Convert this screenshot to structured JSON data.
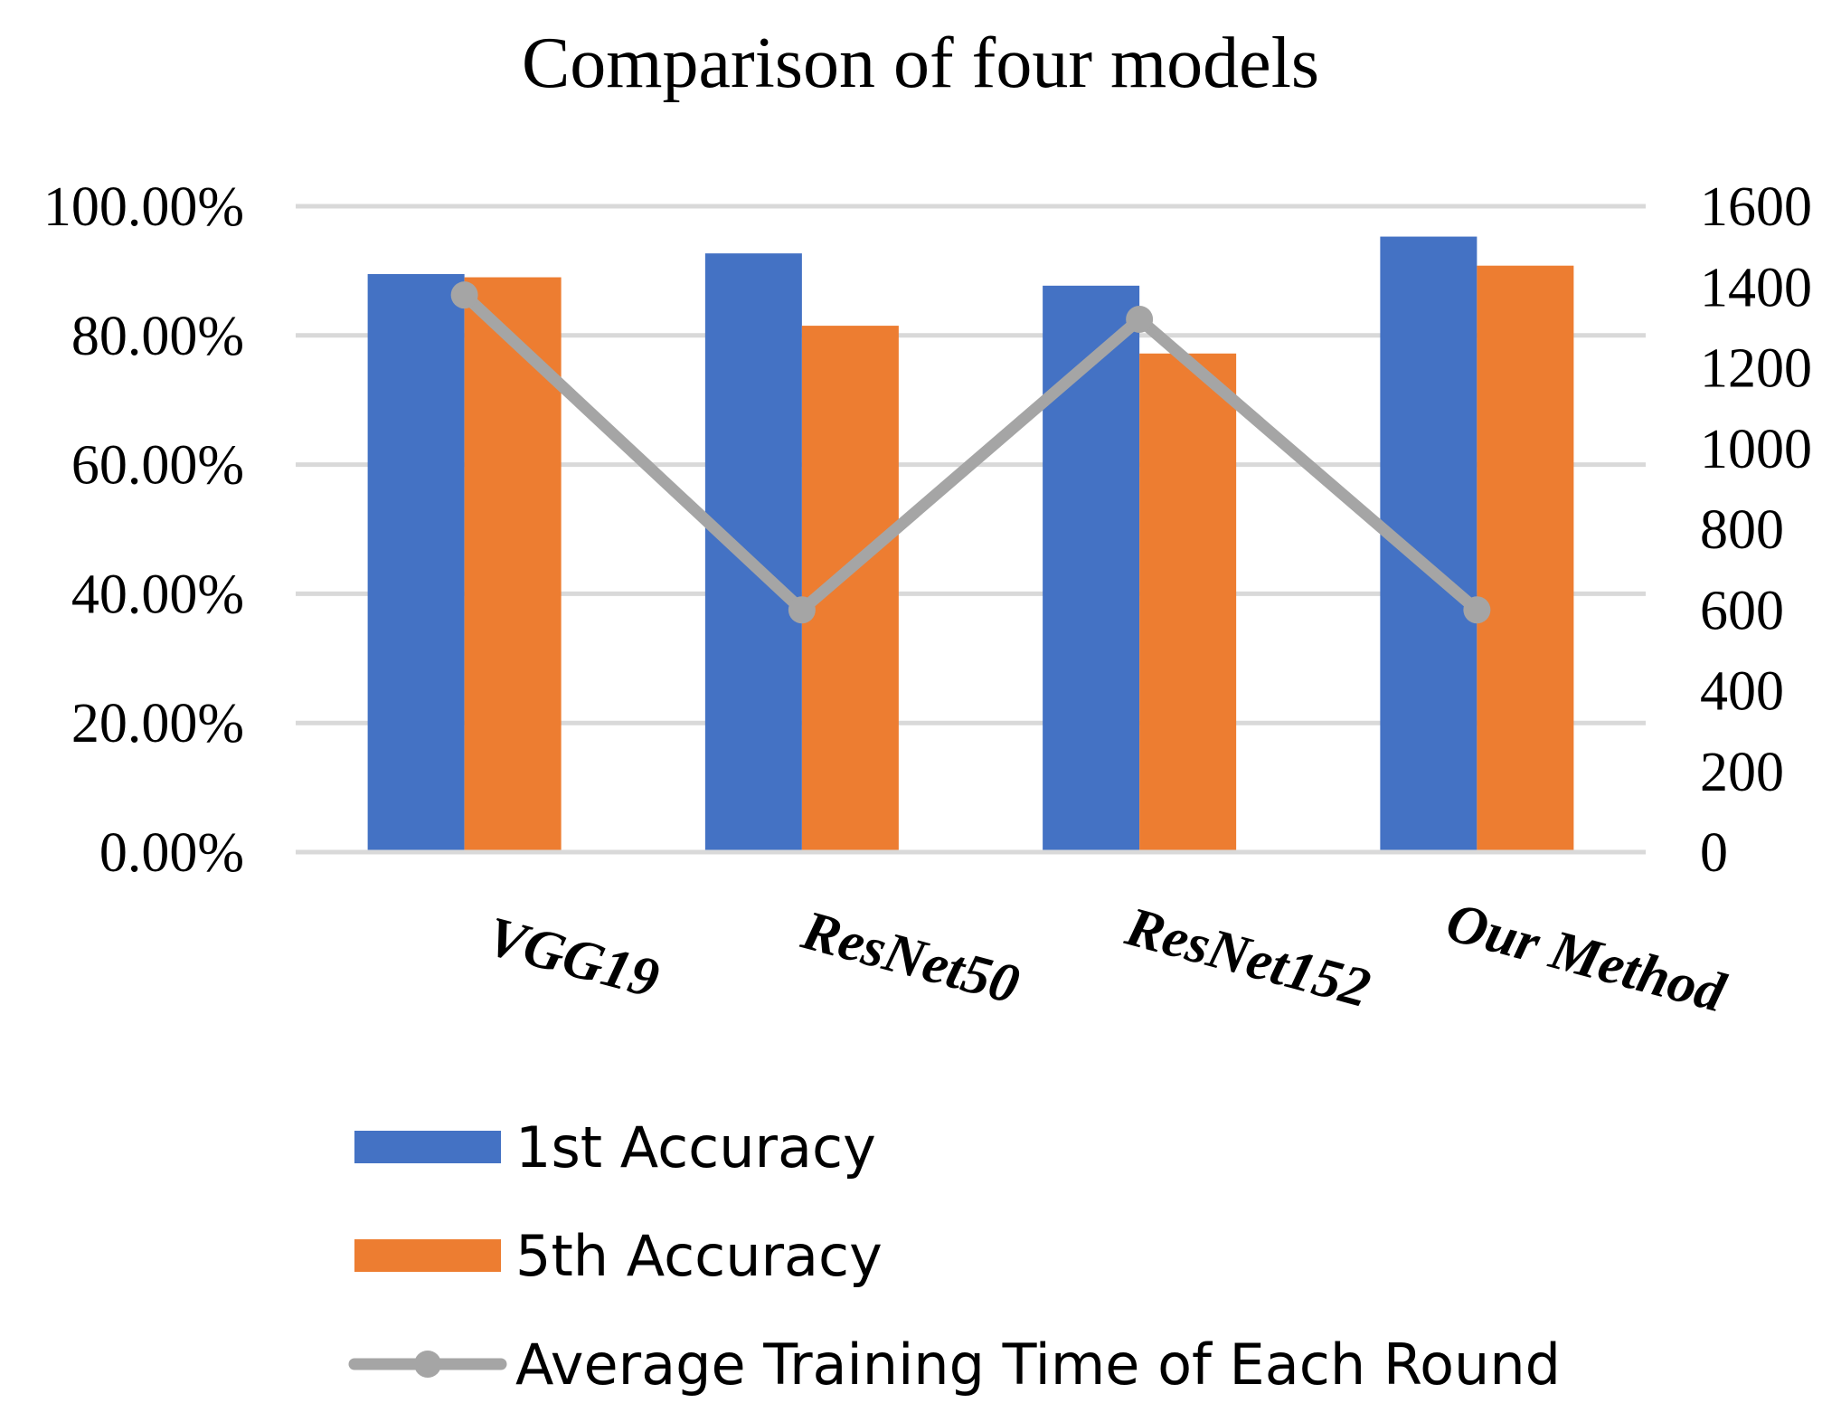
{
  "chart_data": {
    "type": "bar",
    "title": "Comparison of four models",
    "categories": [
      "VGG19",
      "ResNet50",
      "ResNet152",
      "Our Method"
    ],
    "series": [
      {
        "name": "1st Accuracy",
        "kind": "bar",
        "axis": "left",
        "color": "#4472c4",
        "values": [
          0.895,
          0.927,
          0.877,
          0.953
        ]
      },
      {
        "name": "5th Accuracy",
        "kind": "bar",
        "axis": "left",
        "color": "#ed7d31",
        "values": [
          0.89,
          0.815,
          0.772,
          0.908
        ]
      },
      {
        "name": "Average Training Time of Each Round",
        "kind": "line",
        "axis": "right",
        "color": "#a5a5a5",
        "values": [
          1380,
          600,
          1320,
          600
        ]
      }
    ],
    "y_left": {
      "ylim": [
        0,
        1
      ],
      "ticks": [
        0,
        0.2,
        0.4,
        0.6,
        0.8,
        1.0
      ],
      "tick_labels": [
        "0.00%",
        "20.00%",
        "40.00%",
        "60.00%",
        "80.00%",
        "100.00%"
      ]
    },
    "y_right": {
      "ylim": [
        0,
        1600
      ],
      "ticks": [
        0,
        200,
        400,
        600,
        800,
        1000,
        1200,
        1400,
        1600
      ],
      "tick_labels": [
        "0",
        "200",
        "400",
        "600",
        "800",
        "1000",
        "1200",
        "1400",
        "1600"
      ]
    },
    "xlabel": "",
    "ylabel": "",
    "grid": true,
    "legend_position": "bottom"
  }
}
